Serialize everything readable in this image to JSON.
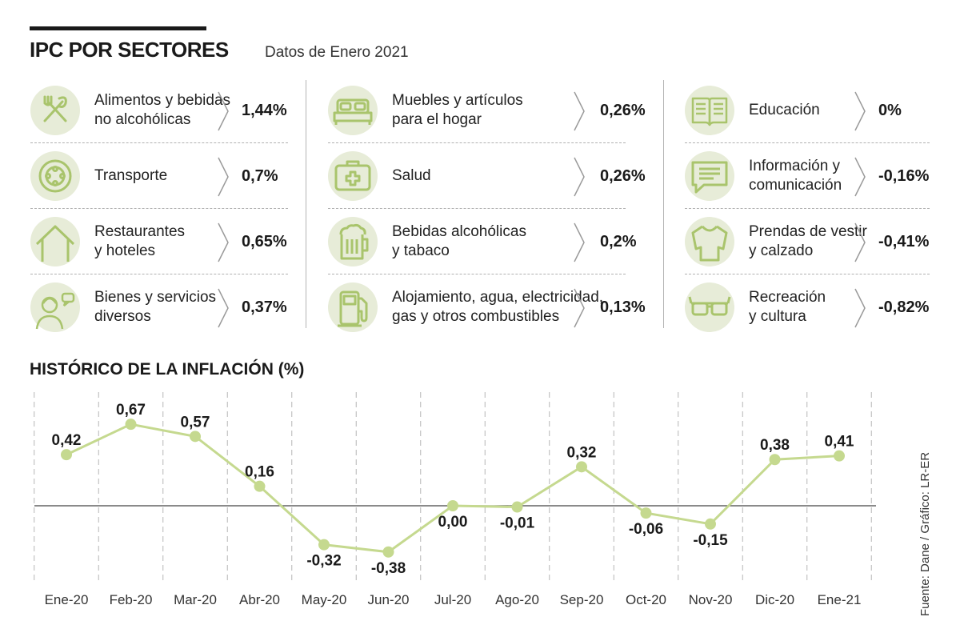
{
  "header": {
    "title": "IPC POR SECTORES",
    "subtitle": "Datos de Enero 2021"
  },
  "sectors": [
    [
      {
        "icon": "fork-knife-icon",
        "label": "Alimentos y bebidas\nno alcohólicas",
        "value": "1,44%"
      },
      {
        "icon": "wheel-icon",
        "label": "Transporte",
        "value": "0,7%"
      },
      {
        "icon": "house-icon",
        "label": "Restaurantes\ny hoteles",
        "value": "0,65%"
      },
      {
        "icon": "person-chat-icon",
        "label": "Bienes y servicios\ndiversos",
        "value": "0,37%"
      }
    ],
    [
      {
        "icon": "bed-icon",
        "label": "Muebles y artículos\npara el hogar",
        "value": "0,26%"
      },
      {
        "icon": "first-aid-kit-icon",
        "label": "Salud",
        "value": "0,26%"
      },
      {
        "icon": "beer-mug-icon",
        "label": "Bebidas alcohólicas\ny tabaco",
        "value": "0,2%"
      },
      {
        "icon": "fuel-pump-icon",
        "label": "Alojamiento, agua, electricidad,\ngas  y otros combustibles",
        "value": "0,13%"
      }
    ],
    [
      {
        "icon": "open-book-icon",
        "label": "Educación",
        "value": "0%"
      },
      {
        "icon": "chat-bubble-icon",
        "label": "Información y\ncomunicación",
        "value": "-0,16%"
      },
      {
        "icon": "shirt-icon",
        "label": "Prendas de vestir\ny calzado",
        "value": "-0,41%"
      },
      {
        "icon": "glasses-icon",
        "label": "Recreación\n y  cultura",
        "value": "-0,82%"
      }
    ]
  ],
  "colors": {
    "accent": "#c5d98f",
    "icon_bg": "#e7ecd8",
    "icon_line": "#a9c46c",
    "text": "#1a1a1a"
  },
  "chart_data": {
    "type": "line",
    "title": "HISTÓRICO DE LA INFLACIÓN (%)",
    "categories": [
      "Ene-20",
      "Feb-20",
      "Mar-20",
      "Abr-20",
      "May-20",
      "Jun-20",
      "Jul-20",
      "Ago-20",
      "Sep-20",
      "Oct-20",
      "Nov-20",
      "Dic-20",
      "Ene-21"
    ],
    "values": [
      0.42,
      0.67,
      0.57,
      0.16,
      -0.32,
      -0.38,
      0.0,
      -0.01,
      0.32,
      -0.06,
      -0.15,
      0.38,
      0.41
    ],
    "value_labels": [
      "0,42",
      "0,67",
      "0,57",
      "0,16",
      "-0,32",
      "-0,38",
      "0,00",
      "-0,01",
      "0,32",
      "-0,06",
      "-0,15",
      "0,38",
      "0,41"
    ],
    "xlabel": "",
    "ylabel": "",
    "ylim": [
      -0.45,
      0.75
    ],
    "grid": true
  },
  "source": "Fuente: Dane / Gráfico: LR-ER"
}
